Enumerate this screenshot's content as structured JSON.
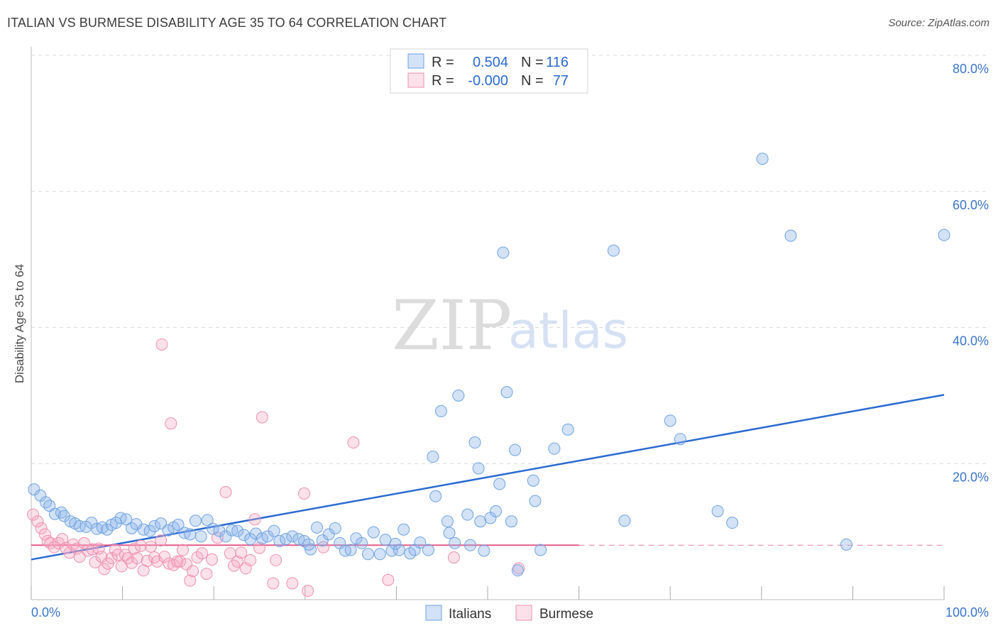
{
  "title": "ITALIAN VS BURMESE DISABILITY AGE 35 TO 64 CORRELATION CHART",
  "source": "Source: ZipAtlas.com",
  "watermark": {
    "zip": "ZIP",
    "atlas": "atlas"
  },
  "colors": {
    "italians": "#6fa3e0",
    "italians_fill": "rgba(140,180,235,0.38)",
    "italians_line": "#2a6ad1",
    "burmese": "#ef8fb0",
    "burmese_fill": "rgba(245,170,195,0.35)",
    "burmese_line": "#e85a8c",
    "grid": "#d9d9d9",
    "tick_text": "#3a74c9"
  },
  "legend": {
    "rows": [
      {
        "r_label": "R =",
        "r_value": "0.504",
        "n_label": "N =",
        "n_value": "116"
      },
      {
        "r_label": "R =",
        "r_value": "-0.000",
        "n_label": "N =",
        "n_value": "77"
      }
    ]
  },
  "chart_data": {
    "type": "scatter",
    "title": "ITALIAN VS BURMESE DISABILITY AGE 35 TO 64 CORRELATION CHART",
    "xlabel": "",
    "ylabel": "Disability Age 35 to 64",
    "xlim": [
      0,
      100
    ],
    "ylim": [
      0,
      80
    ],
    "x_tick_labels": [
      "0.0%",
      "100.0%"
    ],
    "y_ticks": [
      20,
      40,
      60,
      80
    ],
    "y_tick_labels": [
      "20.0%",
      "40.0%",
      "60.0%",
      "80.0%"
    ],
    "grid": true,
    "legend_position": "top-center",
    "series": [
      {
        "name": "Italians",
        "r": 0.504,
        "n": 116,
        "trend": {
          "x": [
            0,
            100
          ],
          "y": [
            5.9,
            30.1
          ]
        },
        "points": [
          [
            0.3,
            16.2
          ],
          [
            1,
            15.3
          ],
          [
            1.6,
            14.3
          ],
          [
            2,
            13.8
          ],
          [
            2.6,
            12.6
          ],
          [
            3.3,
            12.8
          ],
          [
            3.6,
            12.3
          ],
          [
            4.3,
            11.5
          ],
          [
            4.8,
            11.2
          ],
          [
            5.3,
            10.8
          ],
          [
            6,
            10.7
          ],
          [
            6.6,
            11.3
          ],
          [
            7.2,
            10.4
          ],
          [
            7.8,
            10.6
          ],
          [
            8.3,
            10.3
          ],
          [
            8.8,
            11
          ],
          [
            9.3,
            11.3
          ],
          [
            9.8,
            12
          ],
          [
            10.4,
            11.8
          ],
          [
            11,
            10.5
          ],
          [
            11.5,
            11.1
          ],
          [
            12.3,
            10.3
          ],
          [
            13,
            10.1
          ],
          [
            13.5,
            10.8
          ],
          [
            14.2,
            11.2
          ],
          [
            15,
            10.2
          ],
          [
            15.6,
            10.6
          ],
          [
            16.1,
            11
          ],
          [
            16.8,
            9.8
          ],
          [
            17.4,
            9.6
          ],
          [
            18,
            11.6
          ],
          [
            18.6,
            9.3
          ],
          [
            19.3,
            11.7
          ],
          [
            19.9,
            10.4
          ],
          [
            20.6,
            10.1
          ],
          [
            21.3,
            9.3
          ],
          [
            22,
            10.2
          ],
          [
            22.6,
            10.1
          ],
          [
            23.3,
            9.5
          ],
          [
            24,
            8.9
          ],
          [
            24.6,
            9.7
          ],
          [
            25.3,
            9
          ],
          [
            25.9,
            9.3
          ],
          [
            26.6,
            10.1
          ],
          [
            27.2,
            8.6
          ],
          [
            27.9,
            8.9
          ],
          [
            28.6,
            9.3
          ],
          [
            29.3,
            8.9
          ],
          [
            29.9,
            8.6
          ],
          [
            30.6,
            7.4
          ],
          [
            30.4,
            8.1
          ],
          [
            31.3,
            10.6
          ],
          [
            31.9,
            8.7
          ],
          [
            32.6,
            9.6
          ],
          [
            33.3,
            10.5
          ],
          [
            33.8,
            8.3
          ],
          [
            34.4,
            7.2
          ],
          [
            35,
            7.3
          ],
          [
            35.6,
            9
          ],
          [
            36.2,
            8.3
          ],
          [
            36.9,
            6.7
          ],
          [
            37.5,
            9.9
          ],
          [
            38.2,
            6.7
          ],
          [
            38.8,
            8.8
          ],
          [
            39.5,
            7.2
          ],
          [
            39.9,
            8.2
          ],
          [
            40.3,
            7.3
          ],
          [
            40.8,
            10.3
          ],
          [
            41.5,
            6.8
          ],
          [
            42,
            7.3
          ],
          [
            42.6,
            8.4
          ],
          [
            43.5,
            7.3
          ],
          [
            44,
            21
          ],
          [
            44.3,
            15.2
          ],
          [
            44.9,
            27.7
          ],
          [
            45.8,
            9.8
          ],
          [
            45.6,
            11.5
          ],
          [
            46.4,
            8.3
          ],
          [
            46.8,
            30
          ],
          [
            47.8,
            12.5
          ],
          [
            48.1,
            8
          ],
          [
            48.6,
            23.1
          ],
          [
            49,
            19.3
          ],
          [
            49.2,
            11.5
          ],
          [
            49.6,
            7.2
          ],
          [
            50.3,
            12
          ],
          [
            50.9,
            13
          ],
          [
            51.3,
            17
          ],
          [
            51.7,
            51
          ],
          [
            52.1,
            30.5
          ],
          [
            52.6,
            11.5
          ],
          [
            53,
            22
          ],
          [
            53.3,
            4.3
          ],
          [
            55,
            17.5
          ],
          [
            55.2,
            14.5
          ],
          [
            55.8,
            7.3
          ],
          [
            57.3,
            22.2
          ],
          [
            58.8,
            25
          ],
          [
            63.8,
            51.3
          ],
          [
            65,
            11.6
          ],
          [
            70,
            26.3
          ],
          [
            71.1,
            23.6
          ],
          [
            75.2,
            13
          ],
          [
            76.8,
            11.3
          ],
          [
            80.1,
            64.8
          ],
          [
            83.2,
            53.5
          ],
          [
            89.3,
            8.1
          ],
          [
            100,
            53.6
          ]
        ]
      },
      {
        "name": "Burmese",
        "r": -0.0,
        "n": 77,
        "trend": {
          "x": [
            0,
            60
          ],
          "y": [
            8.0,
            8.0
          ]
        },
        "points": [
          [
            0.2,
            12.5
          ],
          [
            0.7,
            11.5
          ],
          [
            1.1,
            10.5
          ],
          [
            1.5,
            9.6
          ],
          [
            1.8,
            8.6
          ],
          [
            2.1,
            8.3
          ],
          [
            2.5,
            7.7
          ],
          [
            3,
            8.3
          ],
          [
            3.4,
            8.9
          ],
          [
            3.8,
            7.6
          ],
          [
            4.2,
            6.9
          ],
          [
            4.6,
            8.1
          ],
          [
            5,
            7.5
          ],
          [
            5.3,
            6.3
          ],
          [
            5.8,
            8.3
          ],
          [
            6.2,
            7.2
          ],
          [
            6.7,
            7.4
          ],
          [
            7,
            5.5
          ],
          [
            7.4,
            7.5
          ],
          [
            7.7,
            6.3
          ],
          [
            8,
            4.5
          ],
          [
            8.4,
            5.3
          ],
          [
            8.8,
            6.1
          ],
          [
            9.2,
            7.3
          ],
          [
            9.5,
            6.6
          ],
          [
            9.9,
            4.9
          ],
          [
            10.3,
            6.6
          ],
          [
            10.6,
            6.1
          ],
          [
            11,
            5.4
          ],
          [
            11.3,
            7.5
          ],
          [
            11.6,
            6.1
          ],
          [
            12,
            7.9
          ],
          [
            12.3,
            4.3
          ],
          [
            12.7,
            5.7
          ],
          [
            13.1,
            7.8
          ],
          [
            13.5,
            6.2
          ],
          [
            13.8,
            5.6
          ],
          [
            14.2,
            8.7
          ],
          [
            14.3,
            37.5
          ],
          [
            14.6,
            6.3
          ],
          [
            15.1,
            5.3
          ],
          [
            15.3,
            25.9
          ],
          [
            15.6,
            5.1
          ],
          [
            16,
            5.6
          ],
          [
            16.3,
            5.6
          ],
          [
            16.6,
            7.3
          ],
          [
            17,
            5.2
          ],
          [
            17.4,
            2.8
          ],
          [
            17.7,
            4.2
          ],
          [
            18.2,
            6.2
          ],
          [
            18.7,
            6.8
          ],
          [
            19.2,
            3.8
          ],
          [
            19.8,
            5.9
          ],
          [
            20.4,
            9.1
          ],
          [
            21.3,
            15.8
          ],
          [
            21.8,
            6.8
          ],
          [
            22.2,
            5
          ],
          [
            22.6,
            5.6
          ],
          [
            23,
            6.9
          ],
          [
            23.5,
            4.6
          ],
          [
            24,
            5.8
          ],
          [
            24.5,
            11.8
          ],
          [
            25,
            7.6
          ],
          [
            25.3,
            26.8
          ],
          [
            26.5,
            2.4
          ],
          [
            26.8,
            5.8
          ],
          [
            28.6,
            2.4
          ],
          [
            29.9,
            15.6
          ],
          [
            30.3,
            1.3
          ],
          [
            32,
            7.7
          ],
          [
            35.3,
            23.1
          ],
          [
            39.1,
            2.9
          ],
          [
            46.3,
            6.2
          ],
          [
            53.4,
            4.6
          ]
        ]
      }
    ]
  },
  "bottom_legend": {
    "items": [
      "Italians",
      "Burmese"
    ]
  }
}
